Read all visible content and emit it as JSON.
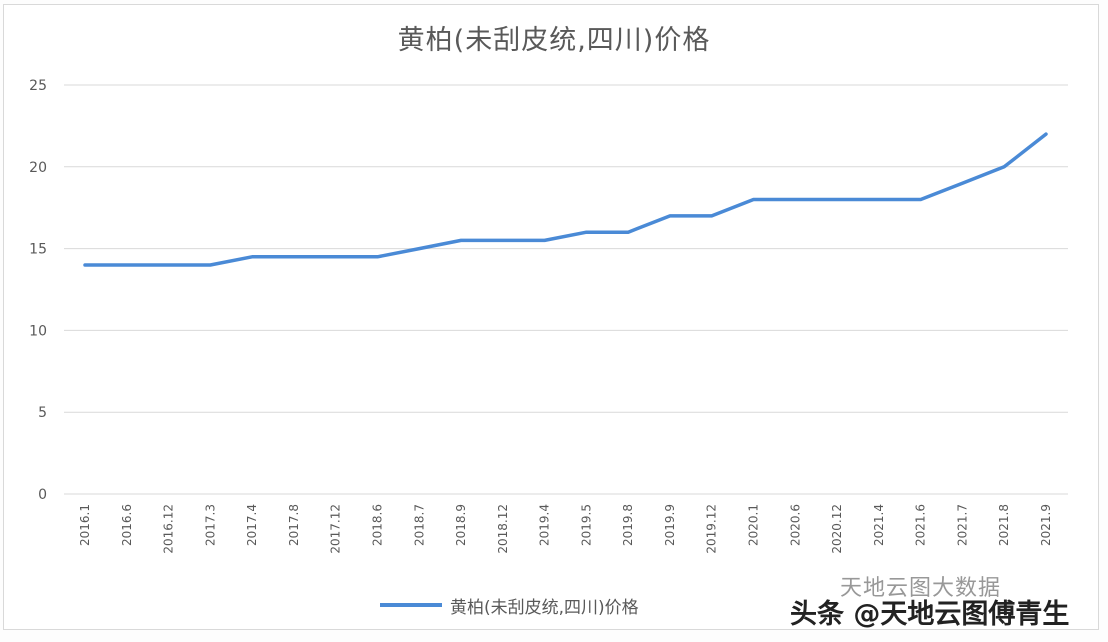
{
  "chart_data": {
    "type": "line",
    "title": "黄柏(未刮皮统,四川)价格",
    "xlabel": "",
    "ylabel": "",
    "ylim": [
      0,
      25
    ],
    "yticks": [
      0,
      5,
      10,
      15,
      20,
      25
    ],
    "grid": true,
    "legend_position": "bottom",
    "categories": [
      "2016.1",
      "2016.6",
      "2016.12",
      "2017.3",
      "2017.4",
      "2017.8",
      "2017.12",
      "2018.6",
      "2018.7",
      "2018.9",
      "2018.12",
      "2019.4",
      "2019.5",
      "2019.8",
      "2019.9",
      "2019.12",
      "2020.1",
      "2020.6",
      "2020.12",
      "2021.4",
      "2021.6",
      "2021.7",
      "2021.8",
      "2021.9"
    ],
    "series": [
      {
        "name": "黄柏(未刮皮统,四川)价格",
        "color": "#4a8ad6",
        "values": [
          14,
          14,
          14,
          14,
          14.5,
          14.5,
          14.5,
          14.5,
          15,
          15.5,
          15.5,
          15.5,
          16,
          16,
          17,
          17,
          18,
          18,
          18,
          18,
          18,
          19,
          20,
          22
        ]
      }
    ]
  },
  "legend": {
    "label": "黄柏(未刮皮统,四川)价格"
  },
  "watermark": {
    "main": "头条 @天地云图傅青生",
    "ghost": "天地云图大数据"
  }
}
